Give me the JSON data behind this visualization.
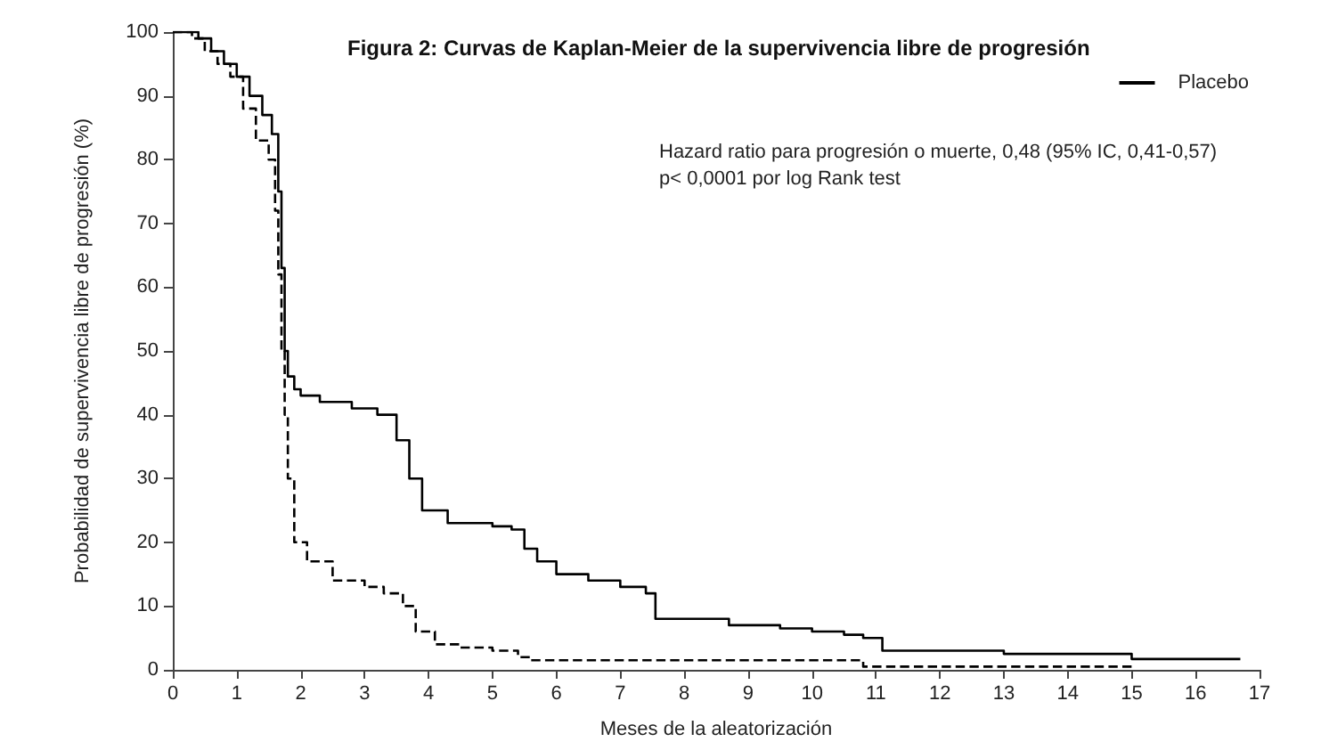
{
  "chart_data": {
    "type": "step",
    "title": "Figura 2: Curvas de Kaplan-Meier de la supervivencia libre de progresión",
    "xlabel": "Meses de la aleatorización",
    "ylabel": "Probabilidad de supervivencia libre de progresión (%)",
    "annotations": [
      "Hazard ratio para progresión o muerte, 0,48 (95% IC, 0,41-0,57)",
      "p< 0,0001 por log Rank test"
    ],
    "xlim": [
      0,
      17
    ],
    "xticks": [
      0,
      1,
      2,
      3,
      4,
      5,
      6,
      7,
      8,
      9,
      10,
      11,
      12,
      13,
      14,
      15,
      16,
      17
    ],
    "ylim": [
      0,
      100
    ],
    "yticks": [
      0,
      10,
      20,
      30,
      40,
      50,
      60,
      70,
      80,
      90,
      100
    ],
    "grid": false,
    "legend": "top right",
    "marker": "none",
    "series": [
      {
        "color": "#000000",
        "line_style": "solid",
        "x": [
          0,
          0.4,
          0.6,
          0.8,
          1.0,
          1.2,
          1.4,
          1.55,
          1.65,
          1.7,
          1.75,
          1.8,
          1.9,
          2.0,
          2.3,
          2.8,
          3.2,
          3.5,
          3.7,
          3.9,
          4.3,
          5.0,
          5.3,
          5.5,
          5.7,
          6.0,
          6.5,
          7.0,
          7.4,
          7.55,
          8.7,
          9.5,
          10.0,
          10.5,
          10.8,
          11.1,
          13.0,
          15.0,
          16.7
        ],
        "values": [
          100,
          99,
          97,
          95,
          93,
          90,
          87,
          84,
          75,
          63,
          50,
          46,
          44,
          43,
          42,
          41,
          40,
          36,
          30,
          25,
          23,
          22.5,
          22,
          19,
          17,
          15,
          14,
          13,
          12,
          8,
          7,
          6.5,
          6,
          5.5,
          5,
          3,
          2.5,
          1.7,
          1.7
        ]
      },
      {
        "name": "Placebo",
        "color": "#000000",
        "line_style": "dashed",
        "x": [
          0,
          0.3,
          0.5,
          0.7,
          0.9,
          1.1,
          1.3,
          1.5,
          1.6,
          1.65,
          1.7,
          1.75,
          1.8,
          1.9,
          2.1,
          2.5,
          3.0,
          3.3,
          3.6,
          3.8,
          4.1,
          4.5,
          5.0,
          5.4,
          5.6,
          10.8,
          15.0
        ],
        "values": [
          100,
          99,
          97,
          95,
          93,
          88,
          83,
          80,
          72,
          62,
          50,
          40,
          30,
          20,
          17,
          14,
          13,
          12,
          10,
          6,
          4,
          3.5,
          3,
          2,
          1.5,
          0.5,
          0.5
        ]
      }
    ]
  }
}
